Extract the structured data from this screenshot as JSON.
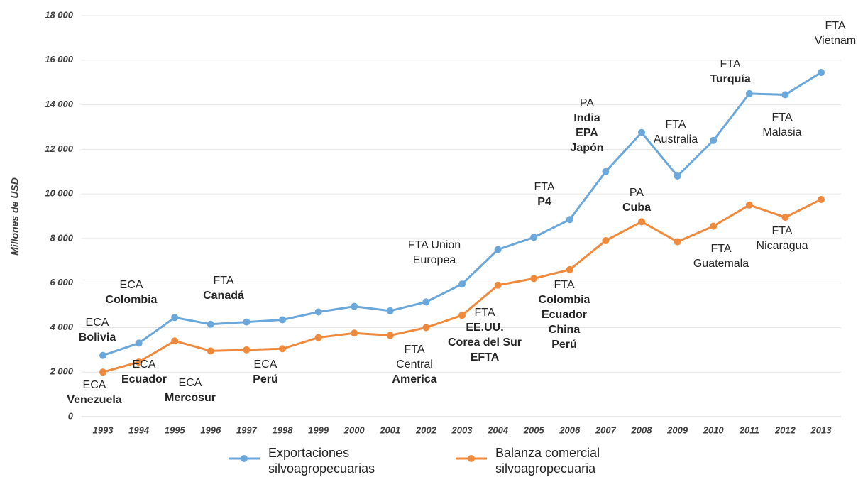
{
  "chart_data": {
    "type": "line",
    "y_label": "Millones de USD",
    "categories": [
      "1993",
      "1994",
      "1995",
      "1996",
      "1997",
      "1998",
      "1999",
      "2000",
      "2001",
      "2002",
      "2003",
      "2004",
      "2005",
      "2006",
      "2007",
      "2008",
      "2009",
      "2010",
      "2011",
      "2012",
      "2013"
    ],
    "series": [
      {
        "name": "Exportaciones silvoagropecuarias",
        "color": "#6aa8dc",
        "values": [
          2750,
          3300,
          4450,
          4150,
          4250,
          4350,
          4700,
          4950,
          4750,
          5150,
          5950,
          7500,
          8050,
          8850,
          11000,
          12750,
          10800,
          12400,
          14500,
          14450,
          15450
        ]
      },
      {
        "name": "Balanza comercial silvoagropecuaria",
        "color": "#ef8a3c",
        "values": [
          2000,
          2450,
          3400,
          2950,
          3000,
          3050,
          3550,
          3750,
          3650,
          4000,
          4550,
          5900,
          6200,
          6600,
          7900,
          8750,
          7850,
          8550,
          9500,
          8950,
          9750
        ]
      }
    ],
    "ylim": [
      0,
      18000
    ],
    "yticks": [
      0,
      {
        "value": 2000,
        "label": "2 000"
      },
      {
        "value": 4000,
        "label": "4 000"
      },
      {
        "value": 6000,
        "label": "6 000"
      },
      {
        "value": 8000,
        "label": "8 000"
      },
      {
        "value": 10000,
        "label": "10 000"
      },
      {
        "value": 12000,
        "label": "12 000"
      },
      {
        "value": 14000,
        "label": "14 000"
      },
      {
        "value": 16000,
        "label": "16 000"
      },
      {
        "value": 18000,
        "label": "18 000"
      }
    ],
    "grid": true,
    "legend": "bottom",
    "annotations": [
      {
        "lines": [
          {
            "text": "ECA",
            "bold": false
          },
          {
            "text": "Bolivia",
            "bold": true
          }
        ]
      },
      {
        "lines": [
          {
            "text": "ECA",
            "bold": false
          },
          {
            "text": "Colombia",
            "bold": true
          }
        ]
      },
      {
        "lines": [
          {
            "text": "ECA",
            "bold": false
          },
          {
            "text": "Venezuela",
            "bold": true
          }
        ]
      },
      {
        "lines": [
          {
            "text": "ECA",
            "bold": false
          },
          {
            "text": "Ecuador",
            "bold": true
          }
        ]
      },
      {
        "lines": [
          {
            "text": "ECA",
            "bold": false
          },
          {
            "text": "Mercosur",
            "bold": true
          }
        ]
      },
      {
        "lines": [
          {
            "text": "FTA",
            "bold": false
          },
          {
            "text": "Canadá",
            "bold": true
          }
        ]
      },
      {
        "lines": [
          {
            "text": "ECA",
            "bold": false
          },
          {
            "text": "Perú",
            "bold": true
          }
        ]
      },
      {
        "lines": [
          {
            "text": "FTA Union",
            "bold": false
          },
          {
            "text": "Europea",
            "bold": false
          }
        ]
      },
      {
        "lines": [
          {
            "text": "FTA",
            "bold": false
          },
          {
            "text": "Central",
            "bold": false
          },
          {
            "text": "America",
            "bold": true
          }
        ]
      },
      {
        "lines": [
          {
            "text": "FTA",
            "bold": false
          },
          {
            "text": "EE.UU.",
            "bold": true
          },
          {
            "text": "Corea del Sur",
            "bold": true
          },
          {
            "text": "EFTA",
            "bold": true
          }
        ]
      },
      {
        "lines": [
          {
            "text": "FTA",
            "bold": false
          },
          {
            "text": "P4",
            "bold": true
          }
        ]
      },
      {
        "lines": [
          {
            "text": "FTA",
            "bold": false
          },
          {
            "text": "Colombia",
            "bold": true
          },
          {
            "text": "Ecuador",
            "bold": true
          },
          {
            "text": "China",
            "bold": true
          },
          {
            "text": "Perú",
            "bold": true
          }
        ]
      },
      {
        "lines": [
          {
            "text": "PA",
            "bold": false
          },
          {
            "text": "India",
            "bold": true
          },
          {
            "text": "EPA",
            "bold": true
          },
          {
            "text": "Japón",
            "bold": true
          }
        ]
      },
      {
        "lines": [
          {
            "text": "PA",
            "bold": false
          },
          {
            "text": "Cuba",
            "bold": true
          }
        ]
      },
      {
        "lines": [
          {
            "text": "FTA",
            "bold": false
          },
          {
            "text": "Australia",
            "bold": false
          }
        ]
      },
      {
        "lines": [
          {
            "text": "FTA",
            "bold": false
          },
          {
            "text": "Turquía",
            "bold": true
          }
        ]
      },
      {
        "lines": [
          {
            "text": "FTA",
            "bold": false
          },
          {
            "text": "Malasia",
            "bold": false
          }
        ]
      },
      {
        "lines": [
          {
            "text": "FTA",
            "bold": false
          },
          {
            "text": "Vietnam",
            "bold": false
          }
        ]
      },
      {
        "lines": [
          {
            "text": "FTA",
            "bold": false
          },
          {
            "text": "Nicaragua",
            "bold": false
          }
        ]
      },
      {
        "lines": [
          {
            "text": "FTA",
            "bold": false
          },
          {
            "text": "Guatemala",
            "bold": false
          }
        ]
      }
    ]
  }
}
